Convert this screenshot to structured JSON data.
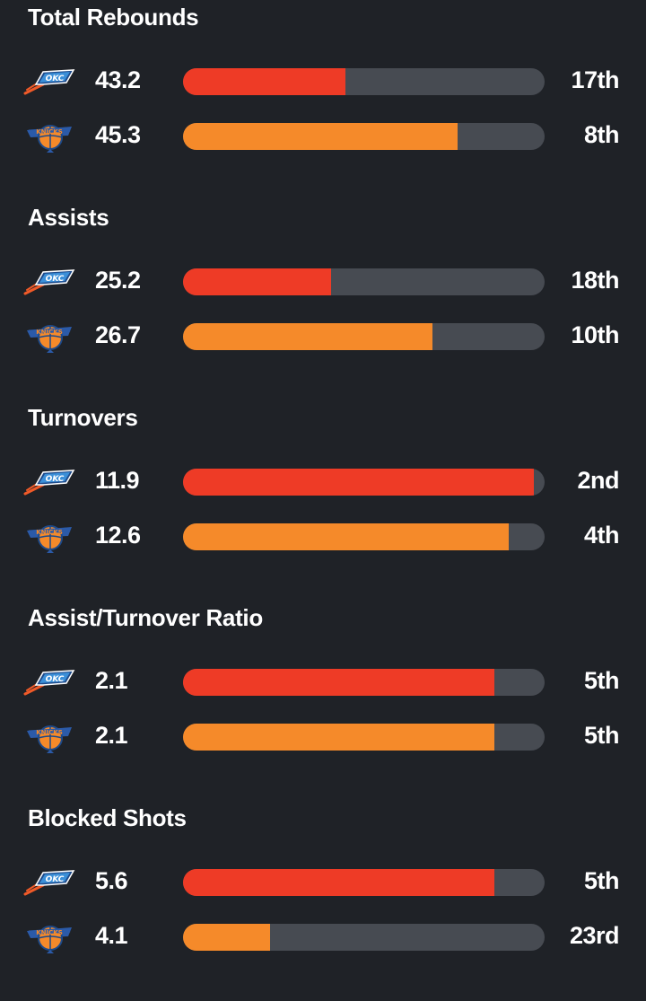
{
  "colors": {
    "background": "#1f2227",
    "track": "#474b52",
    "okc_bar": "#ee3b26",
    "nyk_bar": "#f58a2a"
  },
  "teams": [
    {
      "key": "okc",
      "logo_icon": "okc-thunder-logo-icon"
    },
    {
      "key": "nyk",
      "logo_icon": "ny-knicks-logo-icon"
    }
  ],
  "sections": [
    {
      "title": "Total Rebounds",
      "rows": [
        {
          "team": "okc",
          "value": "43.2",
          "rank": "17th",
          "fill": 0.45
        },
        {
          "team": "nyk",
          "value": "45.3",
          "rank": "8th",
          "fill": 0.76
        }
      ]
    },
    {
      "title": "Assists",
      "rows": [
        {
          "team": "okc",
          "value": "25.2",
          "rank": "18th",
          "fill": 0.41
        },
        {
          "team": "nyk",
          "value": "26.7",
          "rank": "10th",
          "fill": 0.69
        }
      ]
    },
    {
      "title": "Turnovers",
      "rows": [
        {
          "team": "okc",
          "value": "11.9",
          "rank": "2nd",
          "fill": 0.97
        },
        {
          "team": "nyk",
          "value": "12.6",
          "rank": "4th",
          "fill": 0.9
        }
      ]
    },
    {
      "title": "Assist/Turnover Ratio",
      "rows": [
        {
          "team": "okc",
          "value": "2.1",
          "rank": "5th",
          "fill": 0.86
        },
        {
          "team": "nyk",
          "value": "2.1",
          "rank": "5th",
          "fill": 0.86
        }
      ]
    },
    {
      "title": "Blocked Shots",
      "rows": [
        {
          "team": "okc",
          "value": "5.6",
          "rank": "5th",
          "fill": 0.86
        },
        {
          "team": "nyk",
          "value": "4.1",
          "rank": "23rd",
          "fill": 0.24
        }
      ]
    }
  ]
}
